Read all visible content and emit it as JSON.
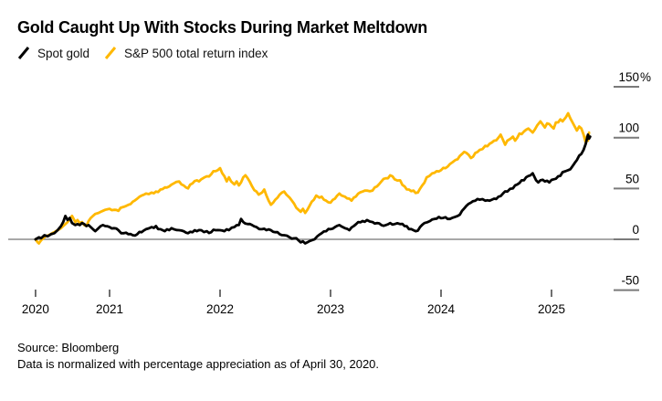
{
  "header": {
    "title": "Gold Caught Up With Stocks During Market Meltdown"
  },
  "legend": [
    {
      "label": "Spot gold",
      "color": "#000000"
    },
    {
      "label": "S&P 500 total return index",
      "color": "#FFB800"
    }
  ],
  "footer": {
    "source": "Source: Bloomberg",
    "note": "Data is normalized with percentage appreciation as of April 30, 2020."
  },
  "chart_data": {
    "type": "line",
    "title": "Gold Caught Up With Stocks During Market Meltdown",
    "grid": "zero-line-only",
    "legend_position": "top-left",
    "x_axis": {
      "range": [
        2020.33,
        2025.35
      ],
      "ticks": [
        {
          "x": 2020.33,
          "label": "2020"
        },
        {
          "x": 2021.0,
          "label": "2021"
        },
        {
          "x": 2022.0,
          "label": "2022"
        },
        {
          "x": 2023.0,
          "label": "2023"
        },
        {
          "x": 2024.0,
          "label": "2024"
        },
        {
          "x": 2025.0,
          "label": "2025"
        }
      ]
    },
    "y_axis": {
      "range": [
        -60,
        160
      ],
      "ticks": [
        {
          "value": 150,
          "label": "150",
          "unit": "%"
        },
        {
          "value": 100,
          "label": "100",
          "unit": ""
        },
        {
          "value": 50,
          "label": "50",
          "unit": ""
        },
        {
          "value": 0,
          "label": "0",
          "unit": ""
        },
        {
          "value": -50,
          "label": "-50",
          "unit": ""
        }
      ]
    },
    "series": [
      {
        "name": "Spot gold",
        "color": "#000000",
        "x": [
          2020.33,
          2020.36,
          2020.38,
          2020.41,
          2020.44,
          2020.47,
          2020.5,
          2020.53,
          2020.56,
          2020.58,
          2020.6,
          2020.62,
          2020.64,
          2020.66,
          2020.69,
          2020.71,
          2020.73,
          2020.75,
          2020.77,
          2020.79,
          2020.81,
          2020.83,
          2020.85,
          2020.87,
          2020.9,
          2020.92,
          2020.94,
          2020.96,
          2021.0,
          2021.04,
          2021.08,
          2021.13,
          2021.17,
          2021.21,
          2021.25,
          2021.29,
          2021.33,
          2021.38,
          2021.42,
          2021.46,
          2021.5,
          2021.54,
          2021.58,
          2021.63,
          2021.67,
          2021.71,
          2021.75,
          2021.79,
          2021.83,
          2021.88,
          2021.92,
          2021.96,
          2022.0,
          2022.04,
          2022.08,
          2022.13,
          2022.17,
          2022.19,
          2022.21,
          2022.25,
          2022.29,
          2022.33,
          2022.38,
          2022.42,
          2022.46,
          2022.5,
          2022.54,
          2022.58,
          2022.63,
          2022.67,
          2022.71,
          2022.73,
          2022.75,
          2022.77,
          2022.79,
          2022.83,
          2022.88,
          2022.92,
          2022.96,
          2023.0,
          2023.04,
          2023.08,
          2023.13,
          2023.17,
          2023.21,
          2023.25,
          2023.29,
          2023.33,
          2023.38,
          2023.42,
          2023.46,
          2023.5,
          2023.54,
          2023.58,
          2023.63,
          2023.67,
          2023.71,
          2023.75,
          2023.77,
          2023.81,
          2023.85,
          2023.9,
          2023.94,
          2023.98,
          2024.02,
          2024.06,
          2024.1,
          2024.15,
          2024.19,
          2024.23,
          2024.27,
          2024.31,
          2024.35,
          2024.4,
          2024.44,
          2024.48,
          2024.52,
          2024.56,
          2024.6,
          2024.65,
          2024.69,
          2024.73,
          2024.77,
          2024.81,
          2024.83,
          2024.86,
          2024.88,
          2024.9,
          2024.94,
          2024.98,
          2025.02,
          2025.06,
          2025.1,
          2025.15,
          2025.19,
          2025.23,
          2025.27,
          2025.29,
          2025.31,
          2025.33,
          2025.34,
          2025.35
        ],
        "values": [
          0,
          2,
          1,
          4,
          3,
          5,
          6,
          9,
          13,
          17,
          23,
          19,
          21,
          16,
          14,
          15,
          14,
          16,
          15,
          13,
          14,
          12,
          10,
          8,
          11,
          13,
          14,
          13,
          12,
          11,
          9,
          6,
          5,
          4,
          5,
          7,
          10,
          12,
          13,
          10,
          8,
          9,
          10,
          9,
          8,
          6,
          7,
          8,
          9,
          8,
          7,
          9,
          9,
          8,
          9,
          12,
          14,
          20,
          17,
          15,
          14,
          12,
          10,
          9,
          9,
          7,
          5,
          4,
          2,
          1,
          -1,
          -3,
          -2,
          -4,
          -3,
          -1,
          3,
          6,
          8,
          10,
          12,
          14,
          11,
          9,
          13,
          17,
          18,
          19,
          17,
          16,
          14,
          14,
          16,
          15,
          15,
          13,
          10,
          9,
          8,
          12,
          16,
          18,
          20,
          22,
          21,
          20,
          21,
          23,
          28,
          33,
          36,
          38,
          39,
          38,
          38,
          40,
          42,
          45,
          47,
          50,
          54,
          58,
          61,
          63,
          65,
          58,
          56,
          58,
          57,
          56,
          59,
          62,
          66,
          68,
          72,
          78,
          84,
          88,
          94,
          103,
          99,
          101
        ]
      },
      {
        "name": "S&P 500 total return index",
        "color": "#FFB800",
        "x": [
          2020.33,
          2020.35,
          2020.36,
          2020.38,
          2020.4,
          2020.42,
          2020.45,
          2020.48,
          2020.5,
          2020.53,
          2020.56,
          2020.58,
          2020.6,
          2020.62,
          2020.64,
          2020.66,
          2020.69,
          2020.71,
          2020.73,
          2020.75,
          2020.77,
          2020.79,
          2020.81,
          2020.83,
          2020.85,
          2020.87,
          2020.9,
          2020.92,
          2020.96,
          2021.0,
          2021.04,
          2021.08,
          2021.1,
          2021.13,
          2021.17,
          2021.21,
          2021.25,
          2021.29,
          2021.33,
          2021.38,
          2021.42,
          2021.46,
          2021.5,
          2021.54,
          2021.58,
          2021.63,
          2021.65,
          2021.67,
          2021.71,
          2021.75,
          2021.79,
          2021.81,
          2021.83,
          2021.88,
          2021.92,
          2021.96,
          2022.0,
          2022.02,
          2022.04,
          2022.06,
          2022.08,
          2022.1,
          2022.13,
          2022.15,
          2022.17,
          2022.19,
          2022.21,
          2022.23,
          2022.25,
          2022.29,
          2022.33,
          2022.35,
          2022.38,
          2022.4,
          2022.42,
          2022.44,
          2022.46,
          2022.48,
          2022.5,
          2022.52,
          2022.54,
          2022.56,
          2022.58,
          2022.6,
          2022.63,
          2022.65,
          2022.67,
          2022.69,
          2022.71,
          2022.73,
          2022.75,
          2022.77,
          2022.79,
          2022.81,
          2022.83,
          2022.85,
          2022.87,
          2022.9,
          2022.92,
          2022.94,
          2022.96,
          2023.0,
          2023.04,
          2023.06,
          2023.08,
          2023.1,
          2023.13,
          2023.17,
          2023.19,
          2023.21,
          2023.25,
          2023.29,
          2023.33,
          2023.38,
          2023.42,
          2023.46,
          2023.5,
          2023.54,
          2023.56,
          2023.58,
          2023.63,
          2023.67,
          2023.71,
          2023.75,
          2023.79,
          2023.83,
          2023.87,
          2023.92,
          2023.96,
          2024.0,
          2024.04,
          2024.08,
          2024.13,
          2024.17,
          2024.21,
          2024.25,
          2024.27,
          2024.31,
          2024.35,
          2024.4,
          2024.44,
          2024.48,
          2024.52,
          2024.54,
          2024.56,
          2024.58,
          2024.6,
          2024.63,
          2024.65,
          2024.67,
          2024.71,
          2024.75,
          2024.79,
          2024.81,
          2024.83,
          2024.87,
          2024.9,
          2024.92,
          2024.94,
          2024.96,
          2025.0,
          2025.02,
          2025.04,
          2025.08,
          2025.1,
          2025.13,
          2025.15,
          2025.17,
          2025.19,
          2025.21,
          2025.23,
          2025.25,
          2025.27,
          2025.29,
          2025.31,
          2025.32,
          2025.33,
          2025.34
        ],
        "values": [
          0,
          -3,
          -4,
          -1,
          1,
          3,
          4,
          6,
          7,
          9,
          11,
          13,
          15,
          17,
          20,
          23,
          17,
          19,
          16,
          17,
          14,
          13,
          18,
          21,
          23,
          25,
          26,
          27,
          29,
          30,
          29,
          28,
          31,
          32,
          34,
          37,
          40,
          43,
          45,
          46,
          47,
          49,
          51,
          52,
          55,
          57,
          54,
          53,
          50,
          55,
          58,
          57,
          59,
          62,
          64,
          67,
          70,
          65,
          62,
          57,
          61,
          57,
          54,
          57,
          53,
          56,
          61,
          63,
          60,
          52,
          47,
          44,
          46,
          49,
          43,
          38,
          34,
          36,
          39,
          41,
          44,
          46,
          47,
          44,
          41,
          38,
          35,
          31,
          29,
          27,
          30,
          26,
          29,
          33,
          37,
          39,
          43,
          41,
          42,
          39,
          38,
          36,
          40,
          43,
          45,
          43,
          42,
          40,
          38,
          41,
          45,
          47,
          48,
          48,
          52,
          57,
          60,
          63,
          62,
          59,
          58,
          52,
          49,
          48,
          46,
          53,
          61,
          65,
          67,
          68,
          70,
          74,
          78,
          82,
          86,
          83,
          80,
          85,
          88,
          92,
          94,
          97,
          100,
          103,
          98,
          93,
          97,
          99,
          101,
          97,
          104,
          106,
          109,
          107,
          105,
          112,
          116,
          113,
          110,
          114,
          111,
          109,
          115,
          118,
          116,
          120,
          124,
          119,
          115,
          111,
          107,
          111,
          109,
          103,
          95,
          101,
          97,
          105
        ]
      }
    ]
  }
}
